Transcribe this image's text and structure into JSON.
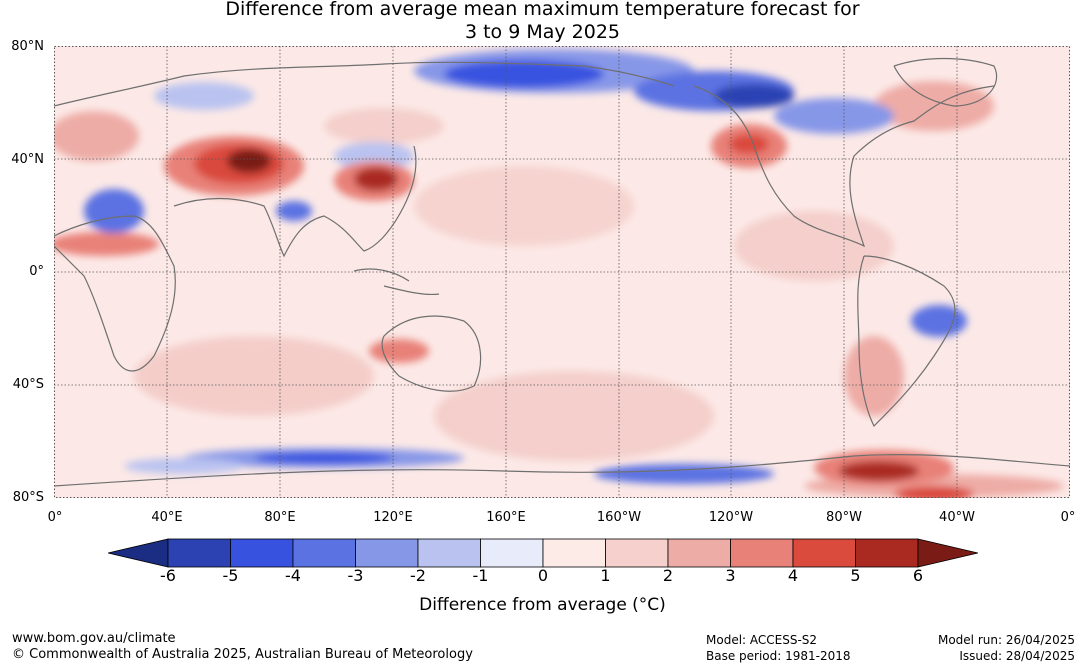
{
  "title": {
    "line1": "Difference from average mean maximum temperature forecast for",
    "line2": "3 to 9 May 2025"
  },
  "map": {
    "lat_labels": [
      "80°N",
      "40°N",
      "0°",
      "40°S",
      "80°S"
    ],
    "lon_labels": [
      "0°",
      "40°E",
      "80°E",
      "120°E",
      "160°E",
      "160°W",
      "120°W",
      "80°W",
      "40°W",
      "0°"
    ],
    "ocean_color": "#fce9e7",
    "land_outline_color": "#6f6f6f"
  },
  "legend": {
    "label": "Difference from average (°C)",
    "ticks": [
      "-6",
      "-5",
      "-4",
      "-3",
      "-2",
      "-1",
      "0",
      "1",
      "2",
      "3",
      "4",
      "5",
      "6"
    ],
    "colors": [
      "#1b2d83",
      "#2c42b3",
      "#3852e0",
      "#5b72e2",
      "#8797e8",
      "#bac3f0",
      "#e8ebfa",
      "#fdebe8",
      "#f6d0cc",
      "#eeaca6",
      "#e88178",
      "#da4a3d",
      "#aa2a22",
      "#7a1b16"
    ]
  },
  "footer": {
    "website": "www.bom.gov.au/climate",
    "copyright": "© Commonwealth of Australia 2025, Australian Bureau of Meteorology",
    "model": "Model: ACCESS-S2",
    "base_period": "Base period: 1981-2018",
    "model_run": "Model run: 26/04/2025",
    "issued": "Issued: 28/04/2025"
  }
}
